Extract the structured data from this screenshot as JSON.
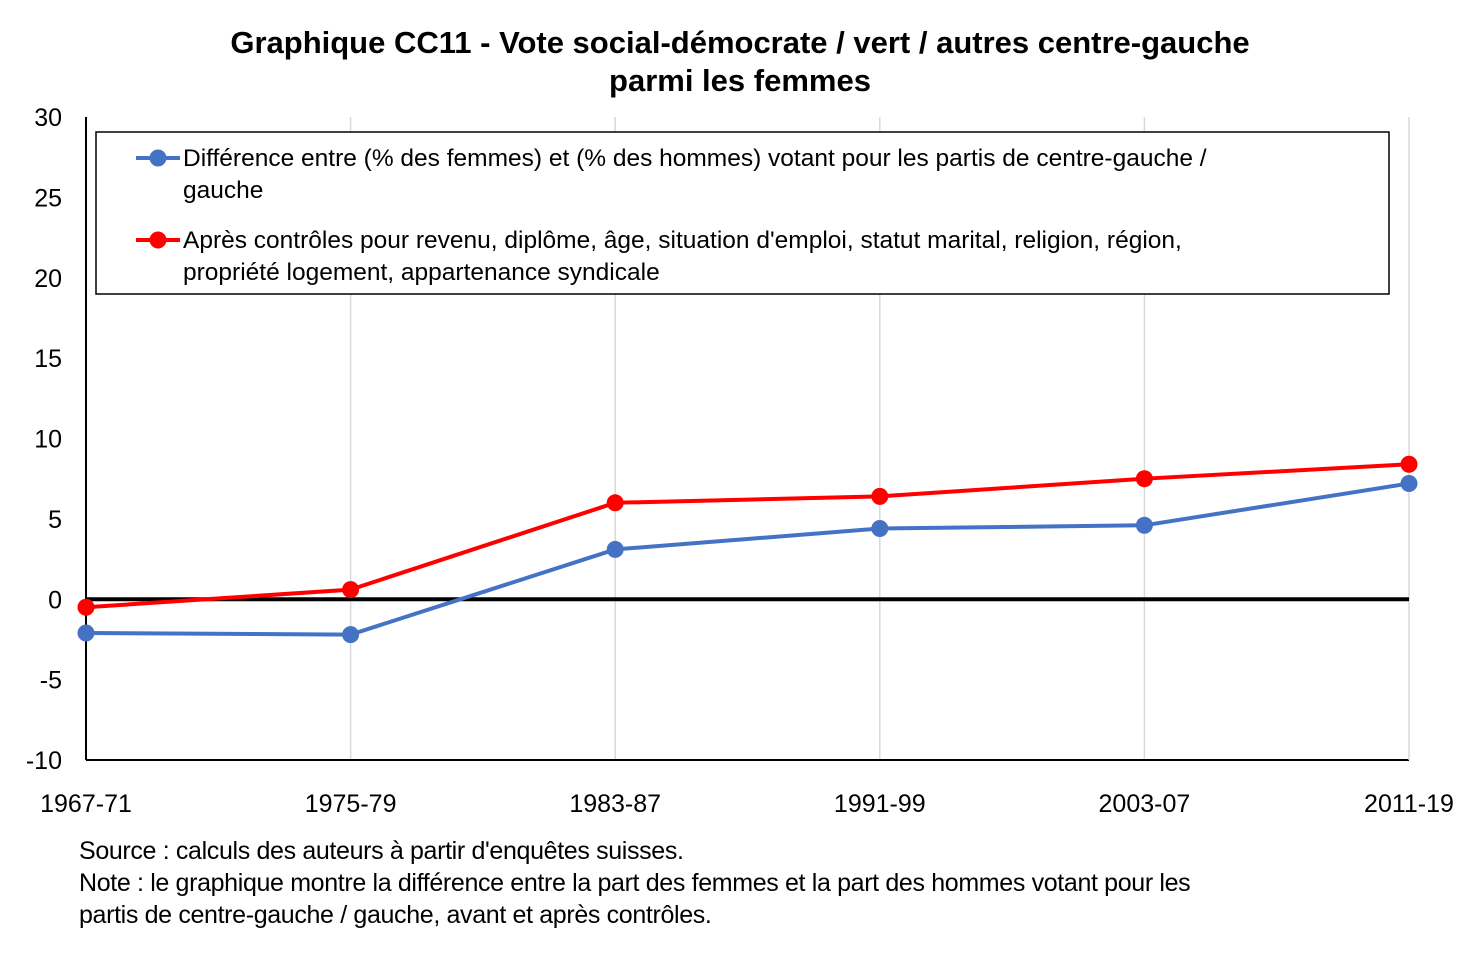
{
  "chart_data": {
    "type": "line",
    "title_lines": [
      "Graphique CC11 - Vote social-démocrate / vert / autres centre-gauche",
      "parmi les femmes"
    ],
    "categories": [
      "1967-71",
      "1975-79",
      "1983-87",
      "1991-99",
      "2003-07",
      "2011-19"
    ],
    "ylim": [
      -10,
      30
    ],
    "yticks": [
      -10,
      -5,
      0,
      5,
      10,
      15,
      20,
      25,
      30
    ],
    "xlabel": "",
    "ylabel": "",
    "grid": "vertical",
    "legend_position": "top, inside plot",
    "series": [
      {
        "name_lines": [
          "Différence entre (% des femmes) et (% des hommes) votant pour les partis de centre-gauche /",
          "gauche"
        ],
        "color": "#4472C4",
        "values": [
          -2.1,
          -2.2,
          3.1,
          4.4,
          4.6,
          7.2
        ]
      },
      {
        "name_lines": [
          "Après contrôles pour revenu, diplôme, âge, situation d'emploi, statut marital, religion, région,",
          "propriété logement, appartenance syndicale"
        ],
        "color": "#FF0000",
        "values": [
          -0.5,
          0.6,
          6.0,
          6.4,
          7.5,
          8.4
        ]
      }
    ]
  },
  "notes": {
    "source": "Source : calculs des auteurs à partir d'enquêtes suisses.",
    "note_line1": "Note : le graphique montre la différence entre la part des femmes et la part des hommes votant pour les",
    "note_line2": "partis de centre-gauche / gauche, avant et après contrôles."
  }
}
